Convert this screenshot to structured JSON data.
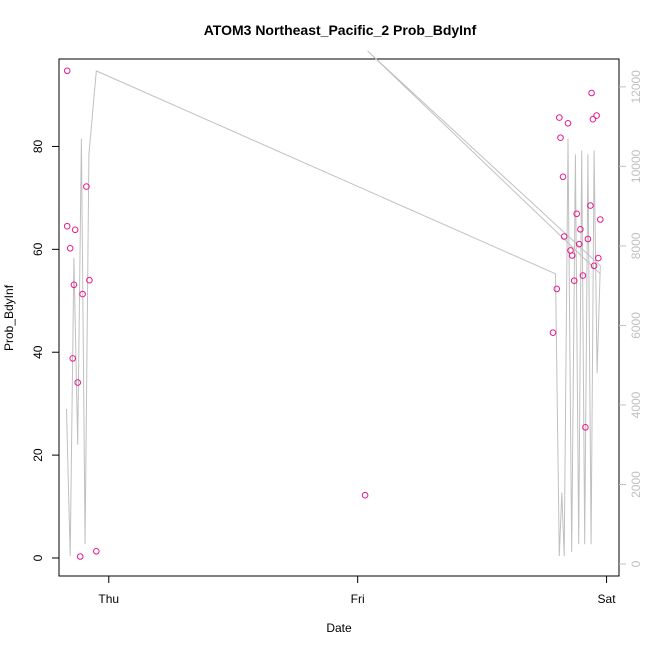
{
  "chart_data": {
    "type": "scatter",
    "title": "ATOM3 Northeast_Pacific_2 Prob_BdyInf",
    "xlabel": "Date",
    "ylabel": "Prob_BdyInf",
    "x_ticks": [
      {
        "label": "Thu",
        "t": 0.0
      },
      {
        "label": "Fri",
        "t": 1.0
      },
      {
        "label": "Sat",
        "t": 2.0
      }
    ],
    "xlim": [
      -0.2,
      2.05
    ],
    "ylim": [
      -3.5,
      97
    ],
    "y_ticks": [
      0,
      20,
      40,
      60,
      80
    ],
    "y2_ticks": [
      0,
      2000,
      4000,
      6000,
      8000,
      10000,
      12000
    ],
    "y2lim": [
      -300,
      12700
    ],
    "axis_color_right": "#c0c0c0",
    "point_color": "#e8198c",
    "line_color": "#c0c0c0",
    "series": [
      {
        "kind": "points",
        "axis": "left",
        "points": [
          [
            -0.167,
            94.7
          ],
          [
            -0.167,
            64.5
          ],
          [
            -0.155,
            60.2
          ],
          [
            -0.145,
            38.8
          ],
          [
            -0.14,
            53.1
          ],
          [
            -0.135,
            63.8
          ],
          [
            -0.125,
            34.1
          ],
          [
            -0.115,
            0.3
          ],
          [
            -0.105,
            51.3
          ],
          [
            -0.09,
            72.2
          ],
          [
            -0.078,
            54.0
          ],
          [
            -0.05,
            1.3
          ],
          [
            1.03,
            12.2
          ],
          [
            1.785,
            43.8
          ],
          [
            1.8,
            52.3
          ],
          [
            1.81,
            85.6
          ],
          [
            1.815,
            81.7
          ],
          [
            1.825,
            74.1
          ],
          [
            1.83,
            62.5
          ],
          [
            1.845,
            84.5
          ],
          [
            1.855,
            59.8
          ],
          [
            1.862,
            58.8
          ],
          [
            1.87,
            53.9
          ],
          [
            1.88,
            66.9
          ],
          [
            1.89,
            61.0
          ],
          [
            1.895,
            63.9
          ],
          [
            1.905,
            54.9
          ],
          [
            1.915,
            25.4
          ],
          [
            1.925,
            62.0
          ],
          [
            1.935,
            68.5
          ],
          [
            1.94,
            90.4
          ],
          [
            1.945,
            85.3
          ],
          [
            1.95,
            56.8
          ],
          [
            1.96,
            86.0
          ],
          [
            1.967,
            58.3
          ],
          [
            1.975,
            65.8
          ]
        ]
      },
      {
        "kind": "line",
        "axis": "right",
        "points": [
          [
            -0.17,
            3900
          ],
          [
            -0.155,
            200
          ],
          [
            -0.14,
            7700
          ],
          [
            -0.125,
            3000
          ],
          [
            -0.11,
            10700
          ],
          [
            -0.095,
            500
          ],
          [
            -0.08,
            10300
          ],
          [
            -0.05,
            12400
          ],
          [
            1.795,
            7300
          ],
          [
            1.81,
            200
          ],
          [
            1.82,
            1800
          ],
          [
            1.83,
            200
          ],
          [
            1.845,
            10700
          ],
          [
            1.86,
            300
          ],
          [
            1.875,
            10300
          ],
          [
            1.888,
            500
          ],
          [
            1.9,
            10400
          ],
          [
            1.912,
            500
          ],
          [
            1.925,
            10300
          ],
          [
            1.938,
            500
          ],
          [
            1.95,
            10400
          ],
          [
            1.962,
            4800
          ],
          [
            1.975,
            7500
          ],
          [
            1.04,
            12900
          ],
          [
            1.975,
            7300
          ]
        ]
      }
    ]
  }
}
